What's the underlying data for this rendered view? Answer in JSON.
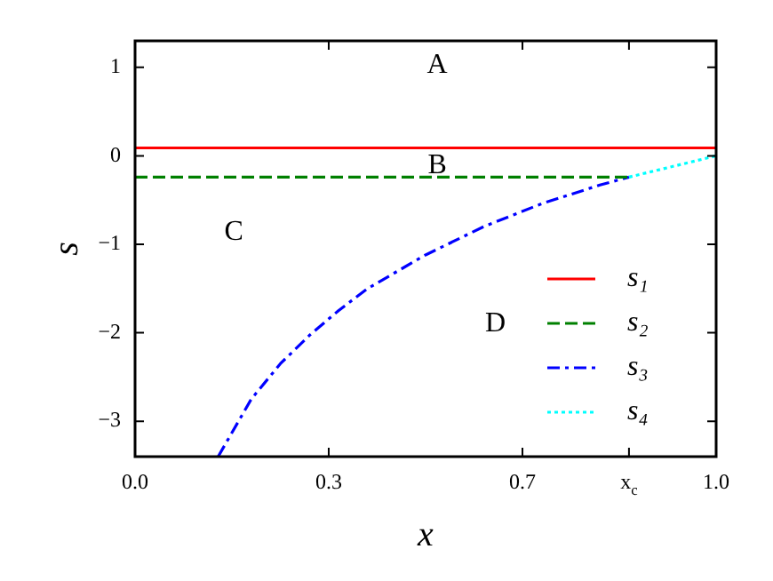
{
  "chart_data": {
    "type": "line",
    "xlabel": "x",
    "ylabel": "s",
    "xlim": [
      0,
      1
    ],
    "ylim": [
      -3.4,
      1.3
    ],
    "xticks": [
      {
        "value": 0,
        "label": "0.0"
      },
      {
        "value": 0.3333,
        "label": "0.3"
      },
      {
        "value": 0.6667,
        "label": "0.7"
      },
      {
        "value": 0.85,
        "label": "x$_{c}$"
      },
      {
        "value": 1,
        "label": "1.0"
      }
    ],
    "yticks": [
      -3,
      -2,
      -1,
      0,
      1
    ],
    "grid": false,
    "legend": "bottom right",
    "marker": "none",
    "series": [
      {
        "name": "s₁",
        "color": "#ff0000",
        "line_style": "solid",
        "x": [
          0,
          1
        ],
        "values": [
          0.09,
          0.09
        ]
      },
      {
        "name": "s₂",
        "color": "#008000",
        "line_style": "dashed",
        "x": [
          0,
          0.85
        ],
        "values": [
          -0.24,
          -0.24
        ]
      },
      {
        "name": "s₃",
        "color": "#0000ff",
        "line_style": "dashdot",
        "x": [
          0.143,
          0.2,
          0.25,
          0.3,
          0.35,
          0.4,
          0.5,
          0.6,
          0.7,
          0.8,
          0.85
        ],
        "values": [
          -3.4,
          -2.75,
          -2.35,
          -2.03,
          -1.75,
          -1.5,
          -1.12,
          -0.8,
          -0.54,
          -0.33,
          -0.24
        ]
      },
      {
        "name": "s₄",
        "color": "#00ffff",
        "line_style": "dotted",
        "x": [
          0.85,
          1
        ],
        "values": [
          -0.24,
          0
        ]
      }
    ],
    "annotations": [
      "A",
      "B",
      "C",
      "D"
    ]
  }
}
